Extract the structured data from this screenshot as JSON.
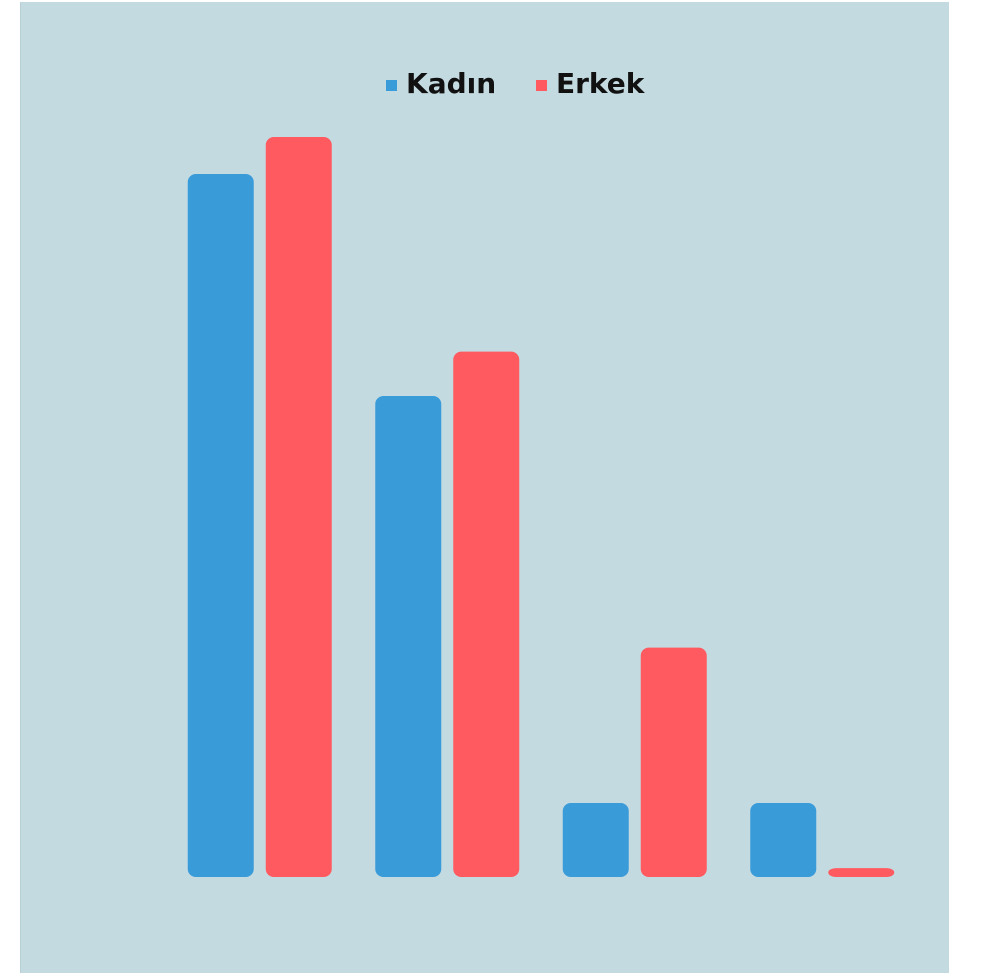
{
  "chart_data": {
    "type": "bar",
    "categories": [
      "",
      "",
      "",
      ""
    ],
    "series": [
      {
        "name": "Kadın",
        "color": "#3a9bd9",
        "values": [
          4750,
          3250,
          500,
          500
        ]
      },
      {
        "name": "Erkek",
        "color": "#ff5a5f",
        "values": [
          5000,
          3550,
          1550,
          60
        ]
      }
    ],
    "ylim": [
      0,
      5000
    ],
    "yticks": [
      0,
      1000,
      2000,
      3000,
      4000,
      5000
    ],
    "grid": false,
    "legend_position": "top-center",
    "background": "#c3dae1",
    "title": "",
    "xlabel": "",
    "ylabel": ""
  }
}
